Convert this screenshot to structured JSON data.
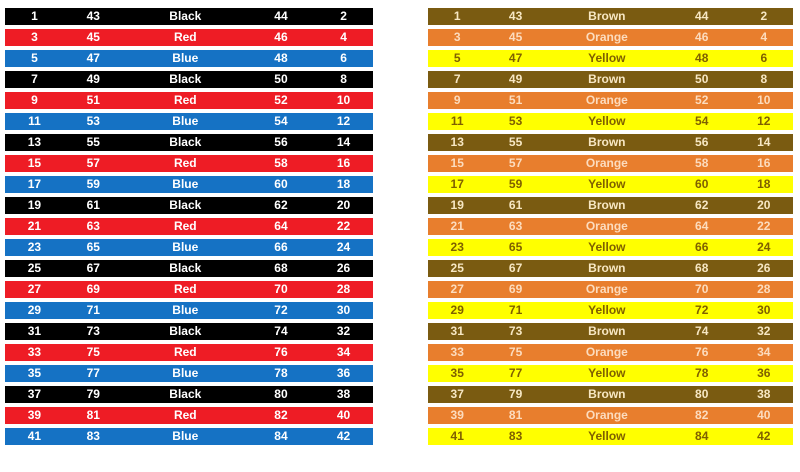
{
  "colors": {
    "black": {
      "bg": "#000000",
      "text": "#ffffff"
    },
    "red": {
      "bg": "#ee1c25",
      "text": "#ffffff"
    },
    "blue": {
      "bg": "#1572c4",
      "text": "#ffffff"
    },
    "brown": {
      "bg": "#7a5b11",
      "text": "#f7e7c3"
    },
    "orange": {
      "bg": "#e87e2d",
      "text": "#fcdcbe"
    },
    "yellow": {
      "bg": "#ffff00",
      "text": "#7f6000"
    }
  },
  "chart_data": [
    {
      "type": "table",
      "name": "black-red-blue-color-code-table",
      "grid": "white gaps between solid color rows",
      "row_color_pattern": [
        "black",
        "red",
        "blue"
      ],
      "rows": [
        {
          "n1": "1",
          "n2": "43",
          "color_label": "Black",
          "n3": "44",
          "n4": "2",
          "row_color": "black"
        },
        {
          "n1": "3",
          "n2": "45",
          "color_label": "Red",
          "n3": "46",
          "n4": "4",
          "row_color": "red"
        },
        {
          "n1": "5",
          "n2": "47",
          "color_label": "Blue",
          "n3": "48",
          "n4": "6",
          "row_color": "blue"
        },
        {
          "n1": "7",
          "n2": "49",
          "color_label": "Black",
          "n3": "50",
          "n4": "8",
          "row_color": "black"
        },
        {
          "n1": "9",
          "n2": "51",
          "color_label": "Red",
          "n3": "52",
          "n4": "10",
          "row_color": "red"
        },
        {
          "n1": "11",
          "n2": "53",
          "color_label": "Blue",
          "n3": "54",
          "n4": "12",
          "row_color": "blue"
        },
        {
          "n1": "13",
          "n2": "55",
          "color_label": "Black",
          "n3": "56",
          "n4": "14",
          "row_color": "black"
        },
        {
          "n1": "15",
          "n2": "57",
          "color_label": "Red",
          "n3": "58",
          "n4": "16",
          "row_color": "red"
        },
        {
          "n1": "17",
          "n2": "59",
          "color_label": "Blue",
          "n3": "60",
          "n4": "18",
          "row_color": "blue"
        },
        {
          "n1": "19",
          "n2": "61",
          "color_label": "Black",
          "n3": "62",
          "n4": "20",
          "row_color": "black"
        },
        {
          "n1": "21",
          "n2": "63",
          "color_label": "Red",
          "n3": "64",
          "n4": "22",
          "row_color": "red"
        },
        {
          "n1": "23",
          "n2": "65",
          "color_label": "Blue",
          "n3": "66",
          "n4": "24",
          "row_color": "blue"
        },
        {
          "n1": "25",
          "n2": "67",
          "color_label": "Black",
          "n3": "68",
          "n4": "26",
          "row_color": "black"
        },
        {
          "n1": "27",
          "n2": "69",
          "color_label": "Red",
          "n3": "70",
          "n4": "28",
          "row_color": "red"
        },
        {
          "n1": "29",
          "n2": "71",
          "color_label": "Blue",
          "n3": "72",
          "n4": "30",
          "row_color": "blue"
        },
        {
          "n1": "31",
          "n2": "73",
          "color_label": "Black",
          "n3": "74",
          "n4": "32",
          "row_color": "black"
        },
        {
          "n1": "33",
          "n2": "75",
          "color_label": "Red",
          "n3": "76",
          "n4": "34",
          "row_color": "red"
        },
        {
          "n1": "35",
          "n2": "77",
          "color_label": "Blue",
          "n3": "78",
          "n4": "36",
          "row_color": "blue"
        },
        {
          "n1": "37",
          "n2": "79",
          "color_label": "Black",
          "n3": "80",
          "n4": "38",
          "row_color": "black"
        },
        {
          "n1": "39",
          "n2": "81",
          "color_label": "Red",
          "n3": "82",
          "n4": "40",
          "row_color": "red"
        },
        {
          "n1": "41",
          "n2": "83",
          "color_label": "Blue",
          "n3": "84",
          "n4": "42",
          "row_color": "blue"
        }
      ]
    },
    {
      "type": "table",
      "name": "brown-orange-yellow-color-code-table",
      "grid": "white gaps between solid color rows",
      "row_color_pattern": [
        "brown",
        "orange",
        "yellow"
      ],
      "rows": [
        {
          "n1": "1",
          "n2": "43",
          "color_label": "Brown",
          "n3": "44",
          "n4": "2",
          "row_color": "brown"
        },
        {
          "n1": "3",
          "n2": "45",
          "color_label": "Orange",
          "n3": "46",
          "n4": "4",
          "row_color": "orange"
        },
        {
          "n1": "5",
          "n2": "47",
          "color_label": "Yellow",
          "n3": "48",
          "n4": "6",
          "row_color": "yellow"
        },
        {
          "n1": "7",
          "n2": "49",
          "color_label": "Brown",
          "n3": "50",
          "n4": "8",
          "row_color": "brown"
        },
        {
          "n1": "9",
          "n2": "51",
          "color_label": "Orange",
          "n3": "52",
          "n4": "10",
          "row_color": "orange"
        },
        {
          "n1": "11",
          "n2": "53",
          "color_label": "Yellow",
          "n3": "54",
          "n4": "12",
          "row_color": "yellow"
        },
        {
          "n1": "13",
          "n2": "55",
          "color_label": "Brown",
          "n3": "56",
          "n4": "14",
          "row_color": "brown"
        },
        {
          "n1": "15",
          "n2": "57",
          "color_label": "Orange",
          "n3": "58",
          "n4": "16",
          "row_color": "orange"
        },
        {
          "n1": "17",
          "n2": "59",
          "color_label": "Yellow",
          "n3": "60",
          "n4": "18",
          "row_color": "yellow"
        },
        {
          "n1": "19",
          "n2": "61",
          "color_label": "Brown",
          "n3": "62",
          "n4": "20",
          "row_color": "brown"
        },
        {
          "n1": "21",
          "n2": "63",
          "color_label": "Orange",
          "n3": "64",
          "n4": "22",
          "row_color": "orange"
        },
        {
          "n1": "23",
          "n2": "65",
          "color_label": "Yellow",
          "n3": "66",
          "n4": "24",
          "row_color": "yellow"
        },
        {
          "n1": "25",
          "n2": "67",
          "color_label": "Brown",
          "n3": "68",
          "n4": "26",
          "row_color": "brown"
        },
        {
          "n1": "27",
          "n2": "69",
          "color_label": "Orange",
          "n3": "70",
          "n4": "28",
          "row_color": "orange"
        },
        {
          "n1": "29",
          "n2": "71",
          "color_label": "Yellow",
          "n3": "72",
          "n4": "30",
          "row_color": "yellow"
        },
        {
          "n1": "31",
          "n2": "73",
          "color_label": "Brown",
          "n3": "74",
          "n4": "32",
          "row_color": "brown"
        },
        {
          "n1": "33",
          "n2": "75",
          "color_label": "Orange",
          "n3": "76",
          "n4": "34",
          "row_color": "orange"
        },
        {
          "n1": "35",
          "n2": "77",
          "color_label": "Yellow",
          "n3": "78",
          "n4": "36",
          "row_color": "yellow"
        },
        {
          "n1": "37",
          "n2": "79",
          "color_label": "Brown",
          "n3": "80",
          "n4": "38",
          "row_color": "brown"
        },
        {
          "n1": "39",
          "n2": "81",
          "color_label": "Orange",
          "n3": "82",
          "n4": "40",
          "row_color": "orange"
        },
        {
          "n1": "41",
          "n2": "83",
          "color_label": "Yellow",
          "n3": "84",
          "n4": "42",
          "row_color": "yellow"
        }
      ]
    }
  ]
}
